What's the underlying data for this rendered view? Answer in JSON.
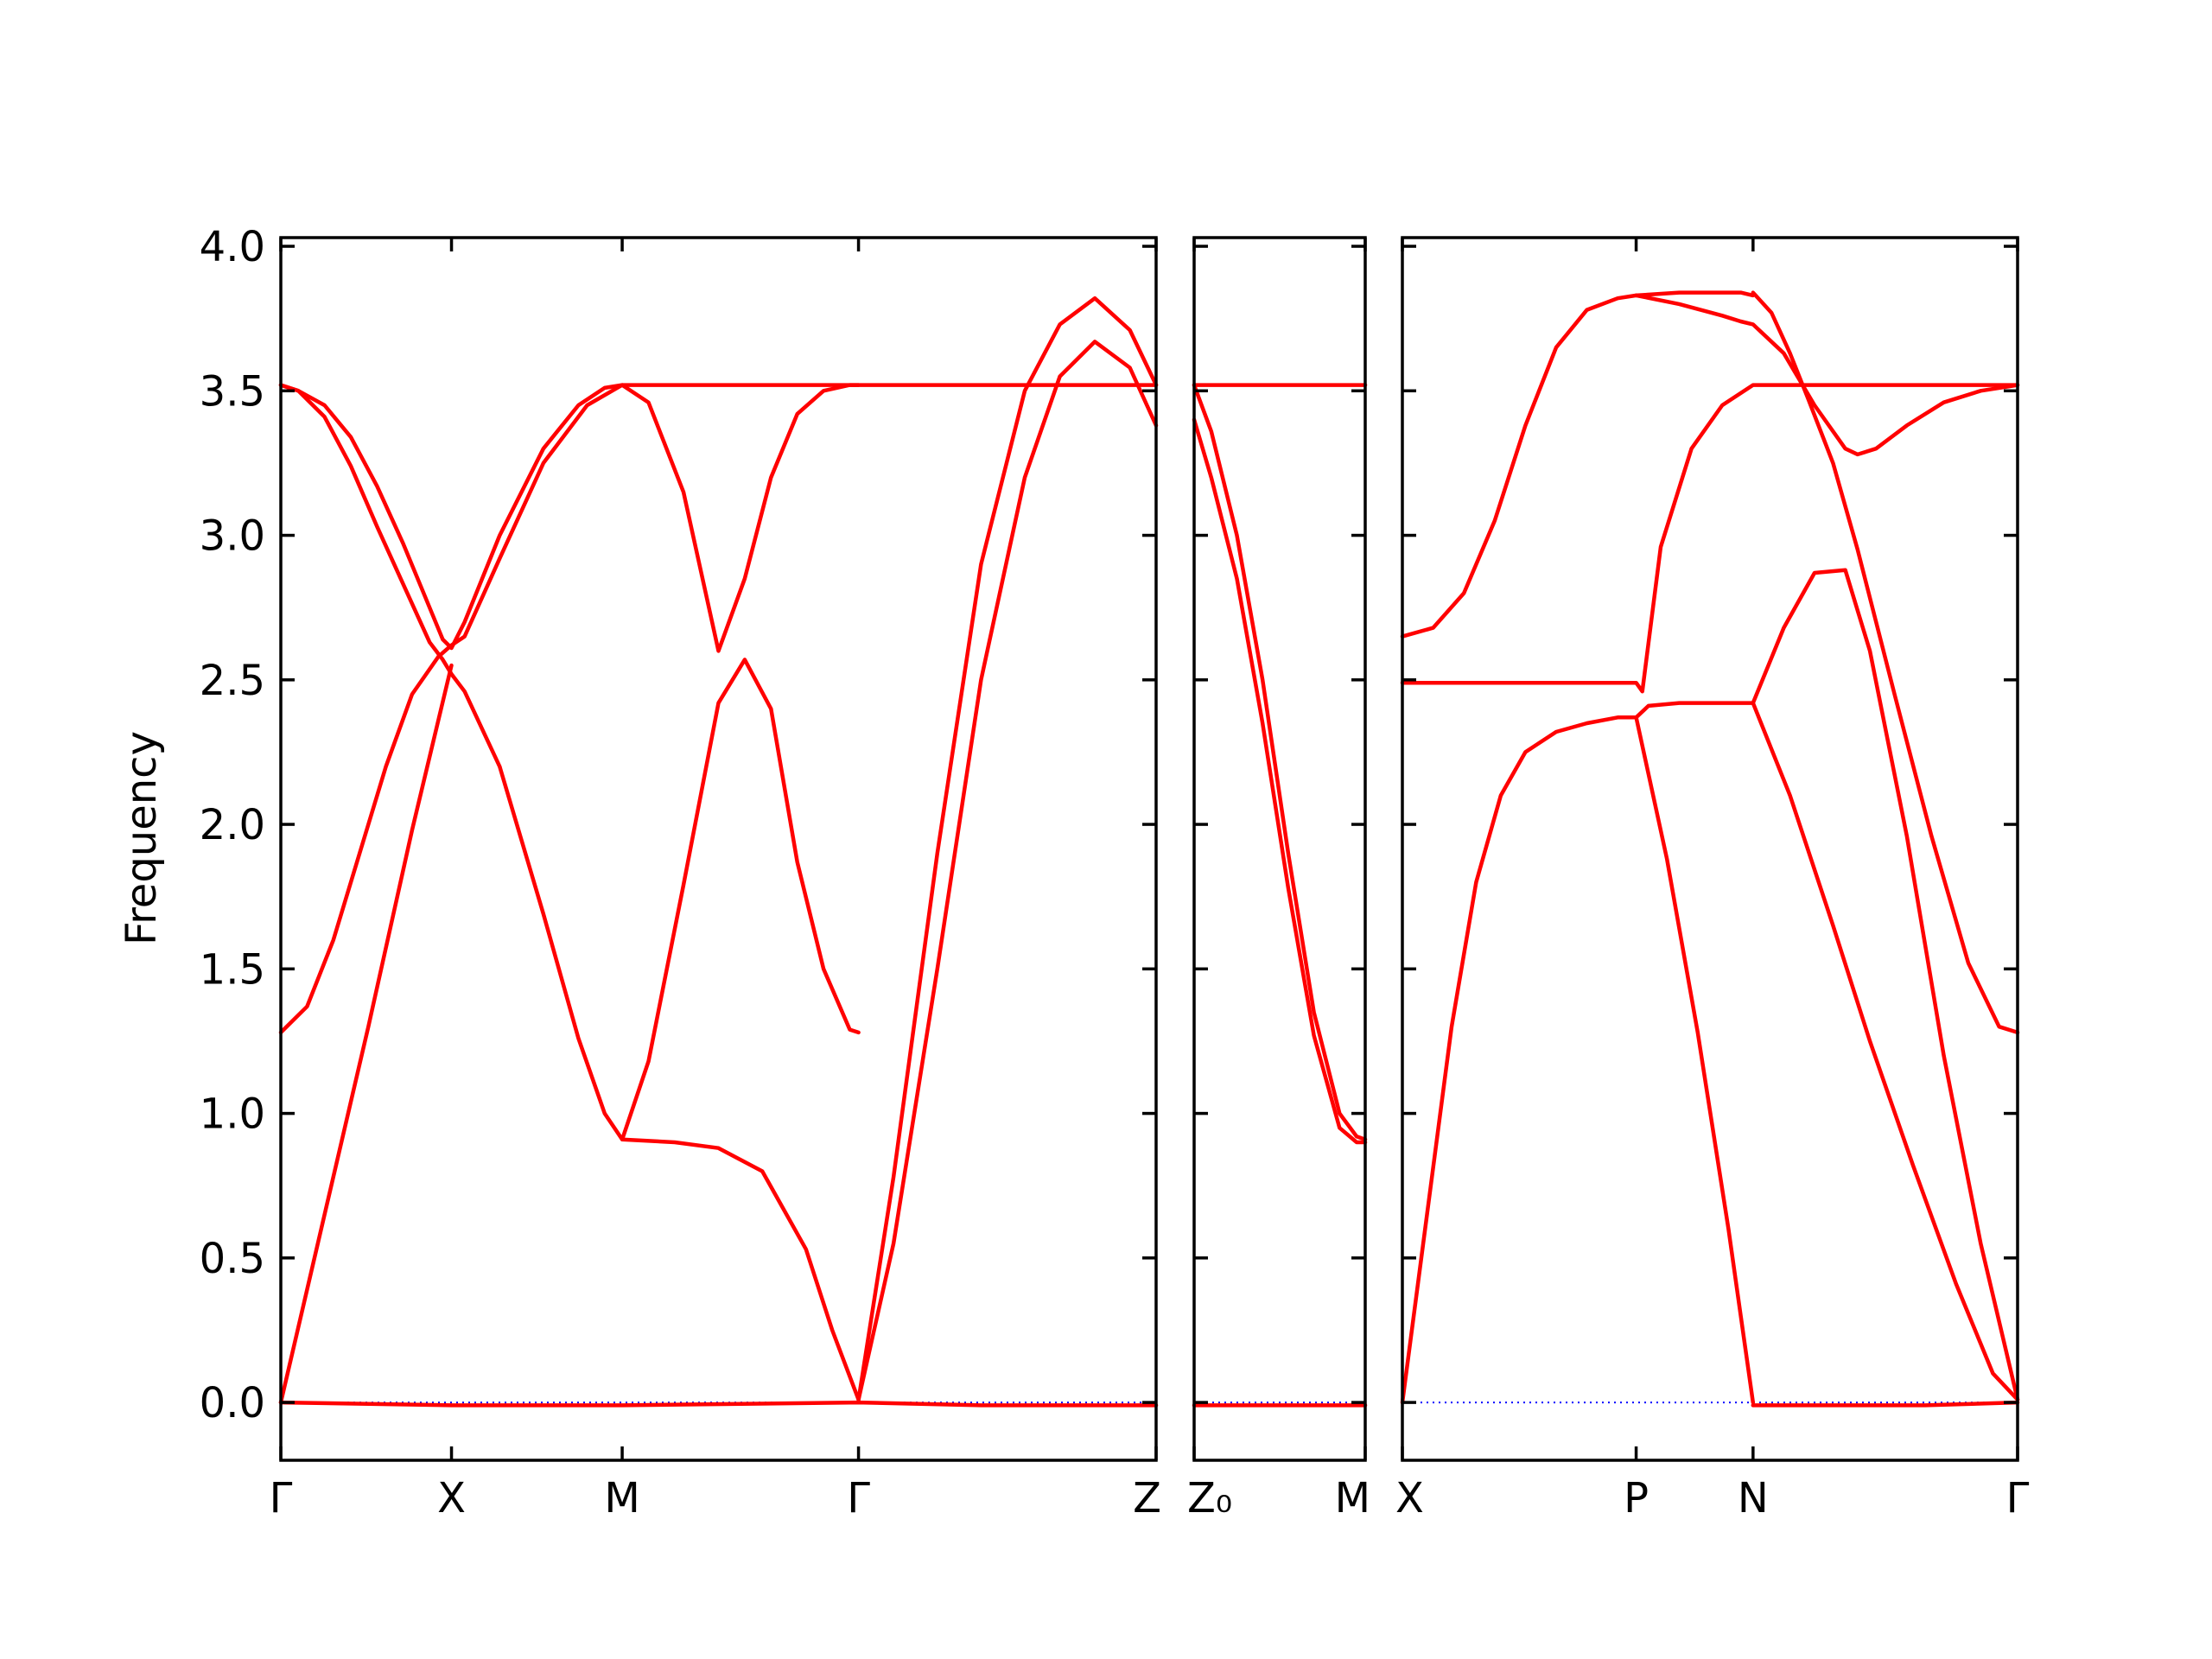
{
  "chart_data": {
    "type": "line",
    "title": "",
    "xlabel": "",
    "ylabel": "Frequency",
    "ylim": [
      -0.2,
      4.03
    ],
    "yticks": [
      "0.0",
      "0.5",
      "1.0",
      "1.5",
      "2.0",
      "2.5",
      "3.0",
      "3.5",
      "4.0"
    ],
    "yticks_values": [
      0,
      0.5,
      1.0,
      1.5,
      2.0,
      2.5,
      3.0,
      3.5,
      4.0
    ],
    "grid": false,
    "band_color": "#ff0000",
    "zero_line_color": "#0000ff",
    "panels": [
      {
        "path_labels": [
          {
            "label": "Γ",
            "x": 0
          },
          {
            "label": "X",
            "x": 0.195
          },
          {
            "label": "M",
            "x": 0.39
          },
          {
            "label": "Γ",
            "x": 0.66
          },
          {
            "label": "Z",
            "x": 1.0
          }
        ],
        "xlim": [
          0,
          1.0
        ],
        "bands": [
          {
            "x": [
              0,
              0.02,
              0.05,
              0.08,
              0.11,
              0.14,
              0.17,
              0.185,
              0.195,
              0.21,
              0.25,
              0.3,
              0.34,
              0.37,
              0.39,
              0.42,
              0.46,
              0.5,
              0.53,
              0.56,
              0.59,
              0.62,
              0.65,
              0.66
            ],
            "y": [
              3.52,
              3.5,
              3.41,
              3.24,
              3.03,
              2.83,
              2.63,
              2.57,
              2.52,
              2.46,
              2.2,
              1.69,
              1.26,
              1.0,
              0.91,
              1.18,
              1.79,
              2.42,
              2.57,
              2.4,
              1.87,
              1.5,
              1.29,
              1.28
            ]
          },
          {
            "x": [
              0,
              0.02,
              0.05,
              0.08,
              0.11,
              0.14,
              0.17,
              0.185,
              0.195,
              0.21,
              0.25,
              0.3,
              0.34,
              0.37,
              0.39,
              0.42,
              0.46,
              0.5,
              0.53,
              0.56,
              0.59,
              0.62,
              0.65,
              0.66
            ],
            "y": [
              3.52,
              3.5,
              3.45,
              3.34,
              3.17,
              2.97,
              2.75,
              2.64,
              2.61,
              2.7,
              3.0,
              3.3,
              3.45,
              3.51,
              3.52,
              3.46,
              3.15,
              2.6,
              2.85,
              3.2,
              3.42,
              3.5,
              3.52,
              3.52
            ]
          },
          {
            "x": [
              0,
              0.03,
              0.06,
              0.09,
              0.12,
              0.15,
              0.18,
              0.195,
              0.21,
              0.25,
              0.3,
              0.35,
              0.39
            ],
            "y": [
              1.28,
              1.37,
              1.6,
              1.9,
              2.2,
              2.45,
              2.58,
              2.62,
              2.65,
              2.92,
              3.25,
              3.45,
              3.52
            ]
          },
          {
            "x": [
              0,
              0.05,
              0.1,
              0.15,
              0.195
            ],
            "y": [
              0.0,
              0.65,
              1.3,
              1.98,
              2.55
            ]
          },
          {
            "x": [
              0.39,
              0.45,
              0.5,
              0.55,
              0.6,
              0.63,
              0.66
            ],
            "y": [
              0.91,
              0.9,
              0.88,
              0.8,
              0.53,
              0.25,
              0.01
            ]
          },
          {
            "x": [
              0.39,
              0.5,
              0.6,
              0.66,
              0.75,
              0.85,
              0.93,
              1.0
            ],
            "y": [
              3.52,
              3.52,
              3.52,
              3.52,
              3.52,
              3.52,
              3.52,
              3.52
            ]
          },
          {
            "x": [
              0.66,
              0.7,
              0.75,
              0.8,
              0.85,
              0.89,
              0.93,
              0.97,
              1.0
            ],
            "y": [
              0.01,
              0.78,
              1.9,
              2.9,
              3.5,
              3.73,
              3.82,
              3.71,
              3.52
            ]
          },
          {
            "x": [
              0.66,
              0.7,
              0.75,
              0.8,
              0.85,
              0.89,
              0.93,
              0.97,
              1.0
            ],
            "y": [
              0.01,
              0.55,
              1.5,
              2.5,
              3.2,
              3.55,
              3.67,
              3.58,
              3.38
            ]
          },
          {
            "x": [
              0,
              0.195,
              0.39,
              0.66,
              0.8,
              1.0
            ],
            "y": [
              0.0,
              -0.01,
              -0.01,
              0.0,
              -0.01,
              -0.01
            ]
          }
        ]
      },
      {
        "path_labels": [
          {
            "label": "Z₀",
            "x": 0
          },
          {
            "label": "M",
            "x": 1.0
          }
        ],
        "xlim": [
          0,
          1.0
        ],
        "bands": [
          {
            "x": [
              0,
              0.1,
              0.25,
              0.4,
              0.55,
              0.7,
              0.85,
              0.95,
              1.0
            ],
            "y": [
              3.52,
              3.36,
              3.0,
              2.5,
              1.9,
              1.35,
              1.0,
              0.92,
              0.91
            ]
          },
          {
            "x": [
              0,
              0.1,
              0.25,
              0.4,
              0.55,
              0.7,
              0.85,
              0.95,
              1.0
            ],
            "y": [
              3.4,
              3.2,
              2.85,
              2.35,
              1.78,
              1.27,
              0.95,
              0.9,
              0.9
            ]
          },
          {
            "x": [
              0,
              0.5,
              1.0
            ],
            "y": [
              3.52,
              3.52,
              3.52
            ]
          },
          {
            "x": [
              0,
              0.5,
              1.0
            ],
            "y": [
              -0.01,
              -0.01,
              -0.01
            ]
          }
        ]
      },
      {
        "path_labels": [
          {
            "label": "X",
            "x": 0
          },
          {
            "label": "P",
            "x": 0.38
          },
          {
            "label": "N",
            "x": 0.57
          },
          {
            "label": "Γ",
            "x": 1.0
          }
        ],
        "xlim": [
          0,
          1.0
        ],
        "bands": [
          {
            "x": [
              0,
              0.05,
              0.1,
              0.15,
              0.2,
              0.25,
              0.3,
              0.35,
              0.38
            ],
            "y": [
              2.65,
              2.68,
              2.8,
              3.05,
              3.38,
              3.65,
              3.78,
              3.82,
              3.83
            ]
          },
          {
            "x": [
              0.38,
              0.45,
              0.52,
              0.55,
              0.57
            ],
            "y": [
              3.83,
              3.84,
              3.84,
              3.84,
              3.83
            ]
          },
          {
            "x": [
              0.38,
              0.45,
              0.52,
              0.55,
              0.57,
              0.62,
              0.67,
              0.72,
              0.74,
              0.77,
              0.82,
              0.88,
              0.94,
              1.0
            ],
            "y": [
              3.83,
              3.8,
              3.76,
              3.74,
              3.73,
              3.63,
              3.45,
              3.3,
              3.28,
              3.3,
              3.38,
              3.46,
              3.5,
              3.52
            ]
          },
          {
            "x": [
              0.57,
              0.6,
              0.63,
              0.66,
              0.7,
              0.74,
              0.8,
              0.86,
              0.92,
              0.97,
              1.0
            ],
            "y": [
              3.84,
              3.77,
              3.63,
              3.47,
              3.25,
              2.95,
              2.45,
              1.96,
              1.52,
              1.3,
              1.28
            ]
          },
          {
            "x": [
              0,
              0.1,
              0.2,
              0.3,
              0.37,
              0.38,
              0.39,
              0.42,
              0.47,
              0.52,
              0.57,
              0.6,
              0.65,
              0.7,
              0.75,
              1.0
            ],
            "y": [
              2.49,
              2.49,
              2.49,
              2.49,
              2.49,
              2.49,
              2.46,
              2.96,
              3.3,
              3.45,
              3.52,
              3.52,
              3.52,
              3.52,
              3.52,
              3.52
            ]
          },
          {
            "x": [
              0,
              0.04,
              0.08,
              0.12,
              0.16,
              0.2,
              0.25,
              0.3,
              0.35,
              0.38
            ],
            "y": [
              0.0,
              0.65,
              1.3,
              1.8,
              2.1,
              2.25,
              2.32,
              2.35,
              2.37,
              2.37
            ]
          },
          {
            "x": [
              0.38,
              0.4,
              0.45,
              0.5,
              0.57,
              0.62,
              0.67,
              0.72,
              0.76,
              0.82,
              0.88,
              0.94,
              1.0
            ],
            "y": [
              2.37,
              2.41,
              2.42,
              2.42,
              2.42,
              2.68,
              2.87,
              2.88,
              2.6,
              1.96,
              1.2,
              0.55,
              0.01
            ]
          },
          {
            "x": [
              0.38,
              0.43,
              0.48,
              0.53,
              0.57
            ],
            "y": [
              2.37,
              1.88,
              1.28,
              0.6,
              0.0
            ]
          },
          {
            "x": [
              0.57,
              0.63,
              0.7,
              0.76,
              0.83,
              0.9,
              0.96,
              1.0
            ],
            "y": [
              2.42,
              2.1,
              1.65,
              1.25,
              0.82,
              0.41,
              0.1,
              0.01
            ]
          },
          {
            "x": [
              0.57,
              0.7,
              0.85,
              1.0
            ],
            "y": [
              -0.01,
              -0.01,
              -0.01,
              0.0
            ]
          }
        ]
      }
    ]
  }
}
